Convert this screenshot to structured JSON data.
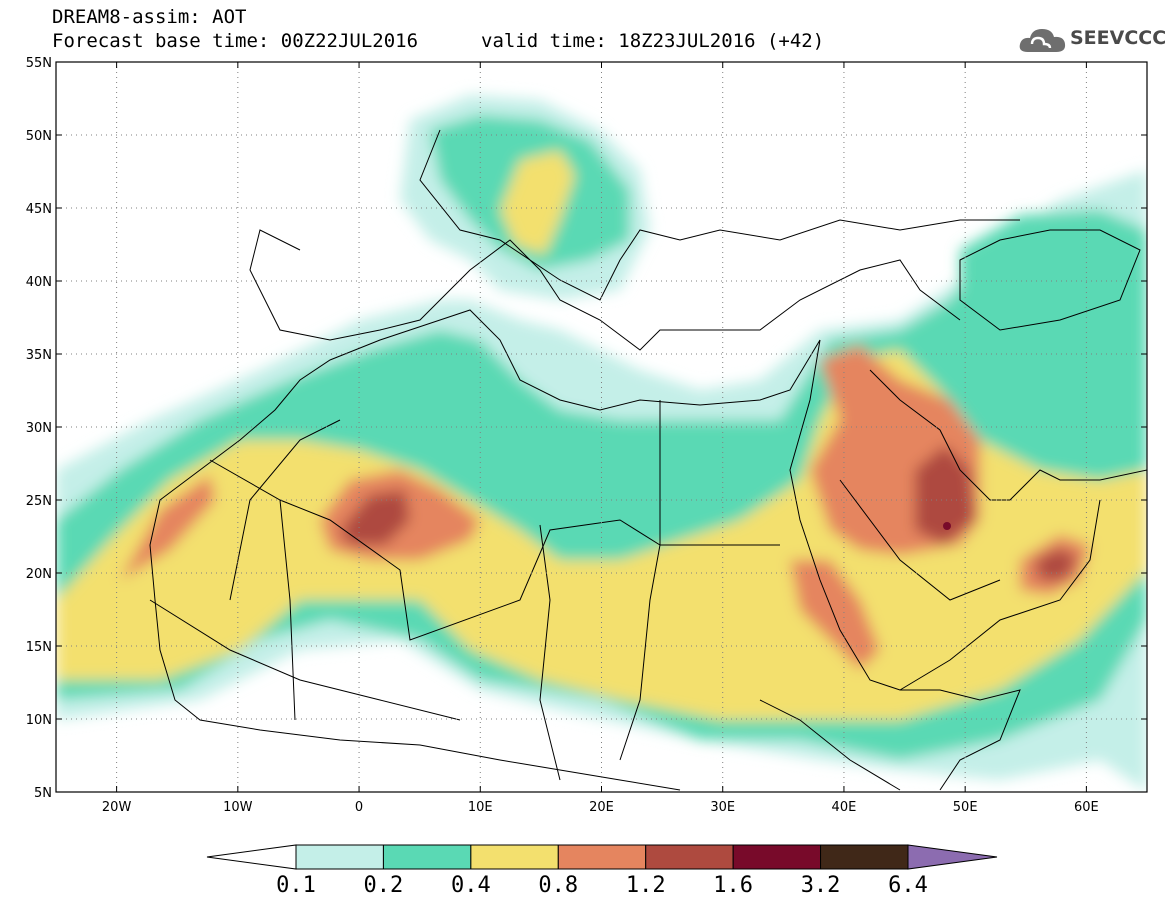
{
  "header": {
    "title": "DREAM8-assim: AOT",
    "base_time": "Forecast base time: 00Z22JUL2016",
    "valid_time": "valid time: 18Z23JUL2016 (+42)"
  },
  "logo": {
    "text": "SEEVCCC",
    "icon": "cloud-icon"
  },
  "map": {
    "lon_range": [
      -25,
      65
    ],
    "lat_range": [
      5,
      55
    ],
    "grid": "dotted",
    "lat_ticks": [
      {
        "value": 55,
        "label": "55N"
      },
      {
        "value": 50,
        "label": "50N"
      },
      {
        "value": 45,
        "label": "45N"
      },
      {
        "value": 40,
        "label": "40N"
      },
      {
        "value": 35,
        "label": "35N"
      },
      {
        "value": 30,
        "label": "30N"
      },
      {
        "value": 25,
        "label": "25N"
      },
      {
        "value": 20,
        "label": "20N"
      },
      {
        "value": 15,
        "label": "15N"
      },
      {
        "value": 10,
        "label": "10N"
      },
      {
        "value": 5,
        "label": "5N"
      }
    ],
    "lon_ticks": [
      {
        "value": -20,
        "label": "20W"
      },
      {
        "value": -10,
        "label": "10W"
      },
      {
        "value": 0,
        "label": "0"
      },
      {
        "value": 10,
        "label": "10E"
      },
      {
        "value": 20,
        "label": "20E"
      },
      {
        "value": 30,
        "label": "30E"
      },
      {
        "value": 40,
        "label": "40E"
      },
      {
        "value": 50,
        "label": "50E"
      },
      {
        "value": 60,
        "label": "60E"
      }
    ],
    "field_centers": [
      {
        "lon": 1,
        "lat": 23,
        "peak": 1.4
      },
      {
        "lon": 48,
        "lat": 24,
        "peak": 1.7
      },
      {
        "lon": 57,
        "lat": 21,
        "peak": 1.3
      },
      {
        "lon": 38,
        "lat": 17,
        "peak": 1.2
      },
      {
        "lon": 15,
        "lat": 46,
        "peak": 0.5
      }
    ]
  },
  "colorbar": {
    "levels": [
      "0.1",
      "0.2",
      "0.4",
      "0.8",
      "1.2",
      "1.6",
      "3.2",
      "6.4"
    ],
    "colors": [
      "#ffffff",
      "#c4efe8",
      "#5ad9b4",
      "#f3e06e",
      "#e5855f",
      "#ae4a3f",
      "#780a2a",
      "#402818",
      "#8c6cb0"
    ]
  }
}
